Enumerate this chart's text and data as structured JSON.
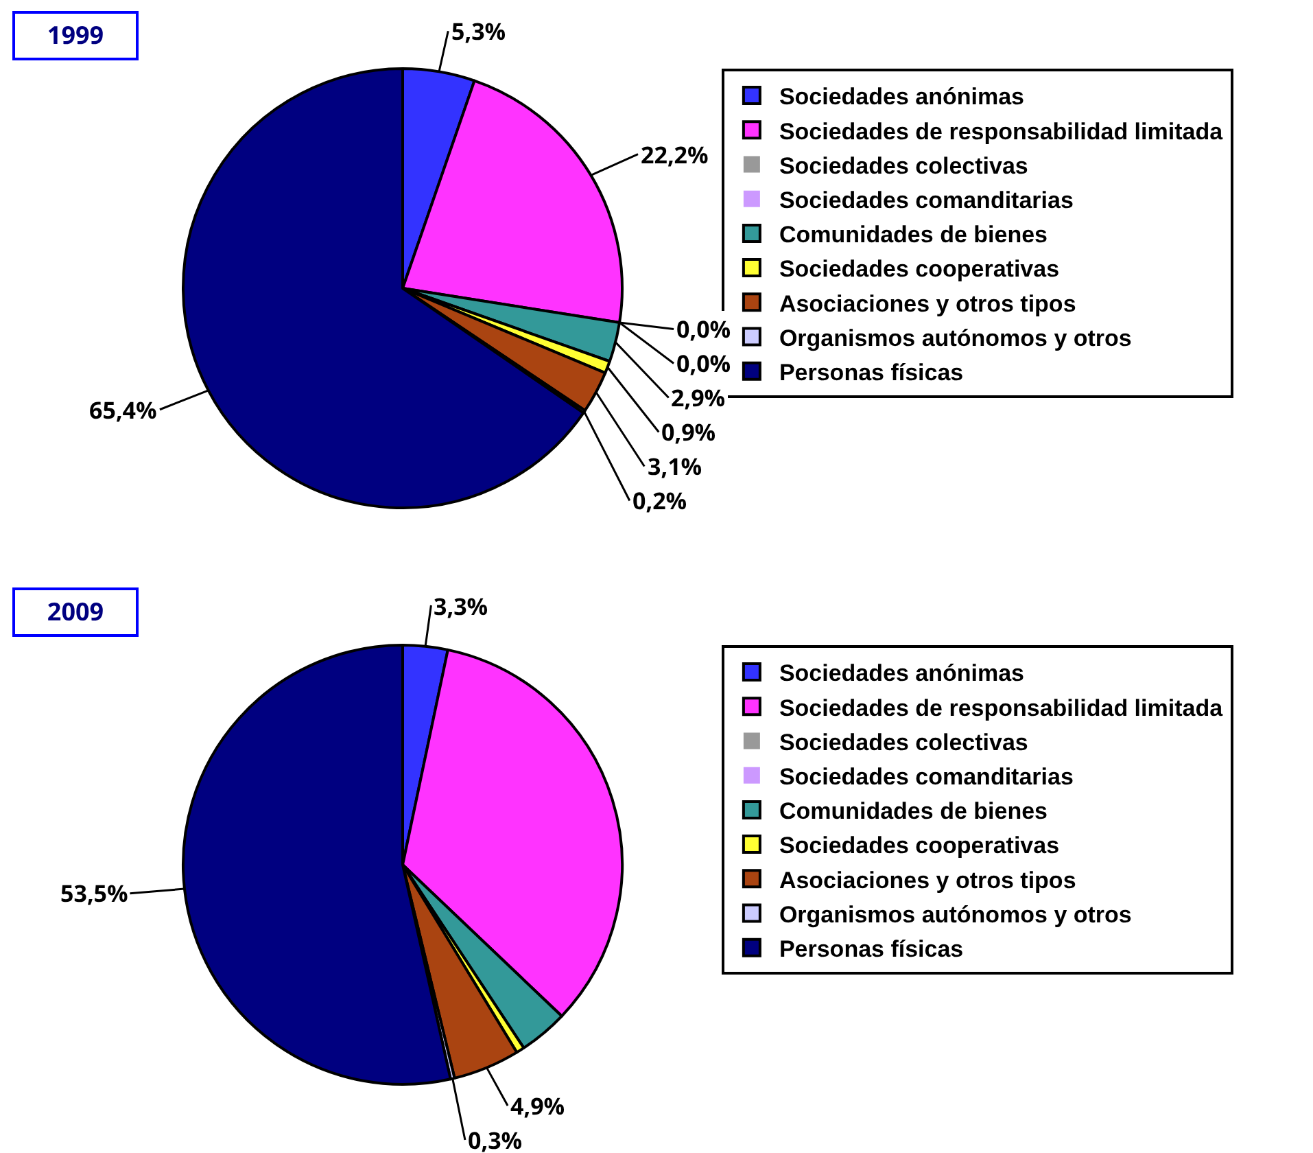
{
  "chart_data": [
    {
      "type": "pie",
      "title": "1999",
      "legend": "right",
      "categories": [
        "Sociedades anónimas",
        "Sociedades de responsabilidad limitada",
        "Sociedades colectivas",
        "Sociedades comanditarias",
        "Comunidades de bienes",
        "Sociedades cooperativas",
        "Asociaciones y otros tipos",
        "Organismos autónomos y otros",
        "Personas físicas"
      ],
      "values": [
        5.3,
        22.2,
        0.0,
        0.0,
        2.9,
        0.9,
        3.1,
        0.2,
        65.4
      ],
      "value_labels": [
        "5,3%",
        "22,2%",
        "0,0%",
        "0,0%",
        "2,9%",
        "0,9%",
        "3,1%",
        "0,2%",
        "65,4%"
      ],
      "colors": [
        "#3333ff",
        "#ff33ff",
        "#999999",
        "#cc99ff",
        "#339999",
        "#ffff33",
        "#aa4411",
        "#ccccff",
        "#000080"
      ]
    },
    {
      "type": "pie",
      "title": "2009",
      "legend": "right",
      "categories": [
        "Sociedades anónimas",
        "Sociedades de responsabilidad limitada",
        "Sociedades colectivas",
        "Sociedades comanditarias",
        "Comunidades de bienes",
        "Sociedades cooperativas",
        "Asociaciones y otros tipos",
        "Organismos autónomos y otros",
        "Personas físicas"
      ],
      "values": [
        3.3,
        33.8,
        0.0,
        0.0,
        3.6,
        0.6,
        4.9,
        0.3,
        53.5
      ],
      "value_labels": [
        "3,3%",
        null,
        null,
        null,
        null,
        null,
        "4,9%",
        "0,3%",
        "53,5%"
      ],
      "colors": [
        "#3333ff",
        "#ff33ff",
        "#999999",
        "#cc99ff",
        "#339999",
        "#ffff33",
        "#aa4411",
        "#ccccff",
        "#000080"
      ]
    }
  ]
}
